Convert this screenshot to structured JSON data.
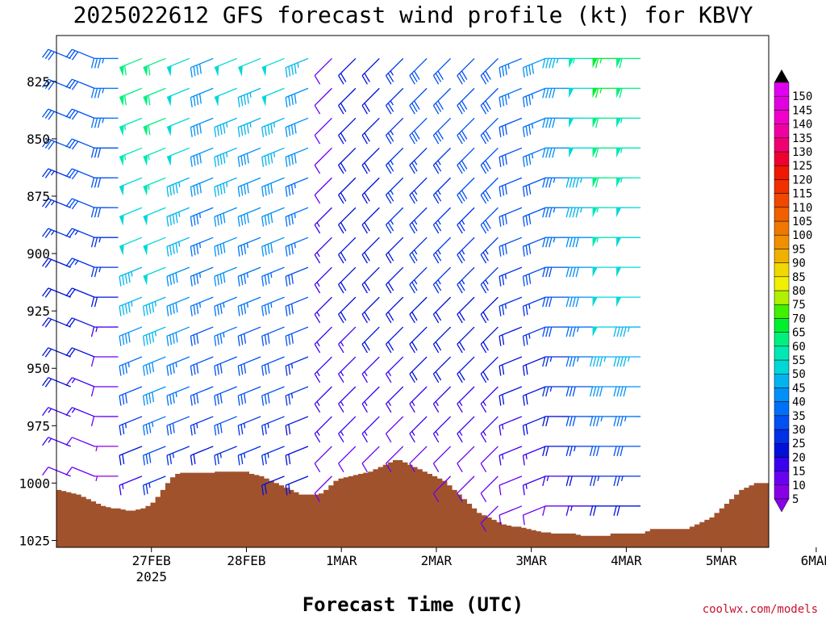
{
  "chart_data": {
    "type": "wind_barb_profile",
    "title": "2025022612 GFS forecast wind profile (kt) for KBVY",
    "xlabel": "Forecast Time (UTC)",
    "credit": "coolwx.com/models",
    "y_axis": {
      "ticks": [
        825,
        850,
        875,
        900,
        925,
        950,
        975,
        1000,
        1025
      ],
      "tick_labels": [
        "825",
        "850",
        "875",
        "900",
        "925",
        "950",
        "975",
        "1000",
        "1025"
      ],
      "range": [
        1028,
        805
      ]
    },
    "x_axis": {
      "ticks": [
        "27FEB",
        "28FEB",
        "1MAR",
        "2MAR",
        "3MAR",
        "4MAR",
        "5MAR",
        "6MAR"
      ],
      "tick_sublabels": [
        "2025",
        "",
        "",
        "",
        "",
        "",
        "",
        ""
      ],
      "range_days": [
        -0.5,
        7.0
      ]
    },
    "colorbar": {
      "labels": [
        "5",
        "10",
        "15",
        "20",
        "25",
        "30",
        "35",
        "40",
        "45",
        "50",
        "55",
        "60",
        "65",
        "70",
        "75",
        "80",
        "85",
        "90",
        "95",
        "100",
        "105",
        "110",
        "115",
        "120",
        "125",
        "130",
        "135",
        "140",
        "145",
        "150"
      ],
      "colors": [
        "#8a00e6",
        "#6a00f2",
        "#3a00f0",
        "#0010d8",
        "#0030e6",
        "#0050f2",
        "#0070f8",
        "#0090f8",
        "#00b4f0",
        "#00d8d8",
        "#00e8b4",
        "#00f080",
        "#00f030",
        "#40f000",
        "#b0f000",
        "#f0f000",
        "#f0d800",
        "#f0b000",
        "#f09000",
        "#f07800",
        "#f06000",
        "#f04800",
        "#f03000",
        "#f01800",
        "#f00030",
        "#f00070",
        "#f000a0",
        "#f000c8",
        "#e000e0",
        "#e000f0"
      ]
    },
    "terrain": {
      "color": "#a0522d",
      "surface_pressure": [
        1003,
        1003.5,
        1004,
        1004.5,
        1005,
        1006,
        1007,
        1008,
        1009,
        1010,
        1010.5,
        1011,
        1011,
        1011.5,
        1012,
        1012,
        1011.5,
        1011,
        1010,
        1008.5,
        1006,
        1003,
        1000,
        997.5,
        996,
        995.5,
        995.5,
        995.5,
        995.5,
        995.5,
        995.5,
        995.5,
        995,
        995,
        995,
        995,
        995,
        995,
        995,
        996,
        996.5,
        997,
        998,
        999,
        1000,
        1001,
        1002,
        1003,
        1004,
        1005,
        1005,
        1005,
        1005,
        1004.5,
        1003,
        1001,
        999,
        998,
        997.5,
        997,
        996.5,
        996,
        995.5,
        995,
        994,
        993,
        992,
        991,
        990,
        990,
        991,
        992,
        993,
        994,
        995,
        996,
        997,
        998,
        999,
        1001,
        1003,
        1005,
        1007,
        1009,
        1011,
        1013,
        1014,
        1015,
        1016,
        1017,
        1018,
        1018.5,
        1019,
        1019,
        1019.5,
        1020,
        1020.5,
        1021,
        1021.5,
        1021.5,
        1022,
        1022,
        1022,
        1022,
        1022,
        1022.5,
        1023,
        1023,
        1023,
        1023,
        1023,
        1023,
        1022,
        1022,
        1022,
        1022,
        1022,
        1022,
        1022,
        1021,
        1020,
        1020,
        1020,
        1020,
        1020,
        1020,
        1020,
        1020,
        1019,
        1018,
        1017,
        1016,
        1015,
        1013,
        1011,
        1009,
        1007,
        1005,
        1003,
        1002,
        1001,
        1000,
        1000,
        1000
      ]
    },
    "barbs": {
      "levels": [
        815,
        828,
        841,
        854,
        867,
        880,
        893,
        906,
        919,
        932,
        945,
        958,
        971,
        984,
        997,
        1010
      ],
      "columns": [
        {
          "t": -0.35,
          "base": "sw",
          "speeds": [
            30,
            30,
            28,
            28,
            26,
            26,
            24,
            22,
            22,
            20,
            18,
            18,
            16,
            14,
            12,
            10
          ]
        },
        {
          "t": -0.1,
          "base": "sw",
          "speeds": [
            32,
            32,
            30,
            30,
            28,
            28,
            26,
            24,
            22,
            20,
            18,
            16,
            14,
            12,
            10,
            8
          ]
        },
        {
          "t": 0.15,
          "base": "w",
          "speeds": [
            35,
            34,
            33,
            32,
            30,
            28,
            26,
            24,
            20,
            16,
            12,
            10,
            8,
            6,
            5,
            5
          ]
        },
        {
          "t": 0.4,
          "base": "wnw",
          "speeds": [
            60,
            58,
            55,
            55,
            52,
            50,
            48,
            46,
            44,
            40,
            35,
            30,
            25,
            20,
            15,
            10
          ]
        },
        {
          "t": 0.65,
          "base": "wnw",
          "speeds": [
            62,
            60,
            58,
            56,
            55,
            52,
            50,
            48,
            46,
            44,
            42,
            38,
            35,
            30,
            25,
            20
          ]
        },
        {
          "t": 0.9,
          "base": "wnw",
          "speeds": [
            50,
            50,
            48,
            48,
            46,
            45,
            44,
            42,
            40,
            38,
            36,
            34,
            30,
            26,
            22,
            18
          ]
        },
        {
          "t": 1.15,
          "base": "wnw",
          "speeds": [
            40,
            40,
            40,
            38,
            38,
            36,
            36,
            35,
            34,
            32,
            30,
            28,
            25,
            22,
            18,
            14
          ]
        },
        {
          "t": 1.4,
          "base": "wnw",
          "speeds": [
            50,
            48,
            46,
            45,
            44,
            42,
            40,
            38,
            36,
            35,
            32,
            30,
            28,
            25,
            22,
            18
          ]
        },
        {
          "t": 1.65,
          "base": "wnw",
          "speeds": [
            48,
            46,
            44,
            42,
            40,
            38,
            36,
            35,
            34,
            32,
            30,
            28,
            26,
            24,
            20,
            16
          ]
        },
        {
          "t": 1.9,
          "base": "wnw",
          "speeds": [
            50,
            48,
            46,
            44,
            42,
            40,
            38,
            36,
            34,
            32,
            30,
            28,
            26,
            24,
            22,
            18
          ]
        },
        {
          "t": 2.15,
          "base": "wnw",
          "speeds": [
            44,
            42,
            40,
            38,
            36,
            35,
            34,
            32,
            30,
            28,
            26,
            24,
            22,
            20,
            18,
            14
          ]
        },
        {
          "t": 2.4,
          "base": "nw",
          "speeds": [
            10,
            10,
            10,
            12,
            12,
            14,
            14,
            15,
            15,
            16,
            16,
            15,
            14,
            12,
            10,
            8
          ]
        },
        {
          "t": 2.65,
          "base": "nw",
          "speeds": [
            20,
            20,
            20,
            20,
            20,
            20,
            20,
            18,
            18,
            16,
            16,
            14,
            14,
            12,
            10,
            10
          ]
        },
        {
          "t": 2.9,
          "base": "nw",
          "speeds": [
            22,
            22,
            22,
            22,
            22,
            22,
            20,
            20,
            18,
            18,
            16,
            14,
            14,
            12,
            10,
            10
          ]
        },
        {
          "t": 3.15,
          "base": "nw",
          "speeds": [
            25,
            25,
            25,
            25,
            24,
            24,
            22,
            22,
            20,
            18,
            16,
            14,
            12,
            10,
            10,
            10
          ]
        },
        {
          "t": 3.4,
          "base": "nw",
          "speeds": [
            28,
            28,
            28,
            26,
            26,
            26,
            24,
            24,
            22,
            20,
            18,
            16,
            14,
            12,
            10,
            10
          ]
        },
        {
          "t": 3.65,
          "base": "nw",
          "speeds": [
            28,
            28,
            28,
            26,
            26,
            26,
            24,
            24,
            22,
            20,
            18,
            16,
            14,
            12,
            10,
            10
          ]
        },
        {
          "t": 3.9,
          "base": "nw",
          "speeds": [
            30,
            30,
            30,
            28,
            28,
            26,
            26,
            24,
            22,
            20,
            18,
            16,
            14,
            12,
            10,
            10
          ]
        },
        {
          "t": 4.15,
          "base": "nw",
          "speeds": [
            32,
            32,
            30,
            30,
            28,
            28,
            26,
            24,
            22,
            20,
            18,
            16,
            14,
            12,
            10,
            10
          ]
        },
        {
          "t": 4.4,
          "base": "wnw",
          "speeds": [
            34,
            34,
            32,
            32,
            30,
            30,
            28,
            26,
            24,
            22,
            20,
            18,
            16,
            14,
            12,
            10
          ]
        },
        {
          "t": 4.65,
          "base": "wnw",
          "speeds": [
            38,
            36,
            36,
            34,
            32,
            32,
            30,
            28,
            26,
            24,
            22,
            20,
            18,
            16,
            14,
            12
          ]
        },
        {
          "t": 4.9,
          "base": "w",
          "speeds": [
            44,
            42,
            40,
            38,
            36,
            35,
            34,
            32,
            30,
            28,
            26,
            24,
            22,
            20,
            16,
            12
          ]
        },
        {
          "t": 5.15,
          "base": "w",
          "speeds": [
            54,
            52,
            50,
            48,
            46,
            44,
            42,
            40,
            38,
            36,
            34,
            30,
            28,
            24,
            20,
            16
          ]
        },
        {
          "t": 5.4,
          "base": "w",
          "speeds": [
            66,
            64,
            62,
            60,
            58,
            56,
            54,
            52,
            50,
            48,
            44,
            40,
            36,
            30,
            25,
            20
          ]
        },
        {
          "t": 5.65,
          "base": "w",
          "speeds": [
            60,
            58,
            56,
            56,
            54,
            52,
            50,
            50,
            48,
            46,
            44,
            40,
            36,
            30,
            24,
            18
          ]
        }
      ]
    },
    "grid": false,
    "legend": "right colorbar"
  }
}
